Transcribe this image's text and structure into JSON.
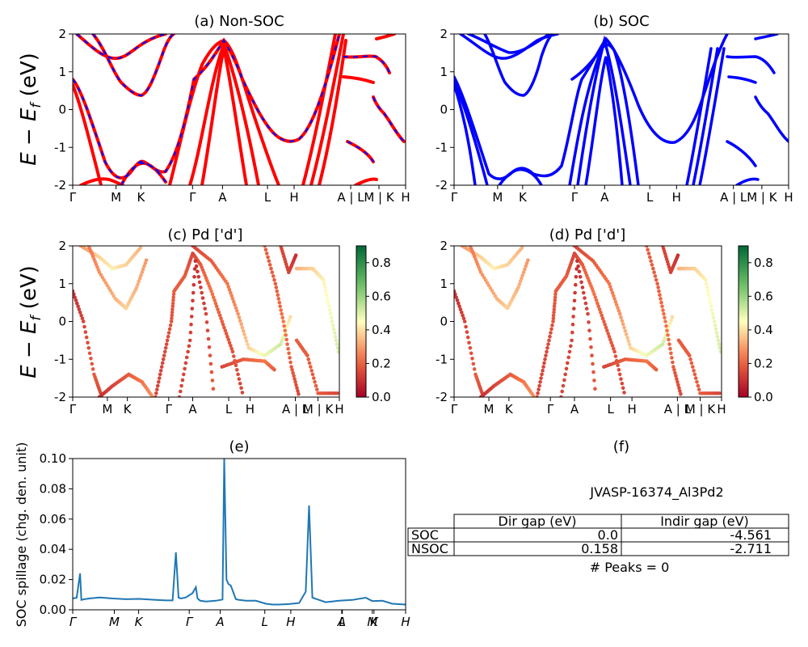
{
  "chart_data": [
    {
      "id": "a",
      "type": "line",
      "title": "(a) Non-SOC",
      "ylabel": "E − E_f (eV)",
      "ylim": [
        -2,
        2
      ],
      "yticks": [
        -2,
        -1,
        0,
        1,
        2
      ],
      "xticks": [
        "Γ",
        "M",
        "K",
        "Γ",
        "A",
        "L",
        "H",
        "A | L",
        "M | K",
        "H"
      ],
      "series": [
        {
          "color": "#ff0000",
          "style": "solid"
        },
        {
          "color": "#0000ff",
          "style": "dashed"
        }
      ],
      "grid": false
    },
    {
      "id": "b",
      "type": "line",
      "title": "(b) SOC",
      "ylim": [
        -2,
        2
      ],
      "yticks": [
        -2,
        -1,
        0,
        1,
        2
      ],
      "xticks": [
        "Γ",
        "M",
        "K",
        "Γ",
        "A",
        "L",
        "H",
        "A | L",
        "M | K",
        "H"
      ],
      "series": [
        {
          "color": "#0000ff",
          "style": "solid"
        }
      ],
      "grid": false
    },
    {
      "id": "c",
      "type": "scatter",
      "title": "(c)  Pd ['d']",
      "ylabel": "E − E_f (eV)",
      "ylim": [
        -2,
        2
      ],
      "yticks": [
        -2,
        -1,
        0,
        1,
        2
      ],
      "xticks": [
        "Γ",
        "M",
        "K",
        "Γ",
        "A",
        "L",
        "H",
        "A | L",
        "M | K",
        "H"
      ],
      "colorbar": {
        "colormap": "RdYlGn",
        "range": [
          0.0,
          0.9
        ],
        "ticks": [
          "0.0",
          "0.2",
          "0.4",
          "0.6",
          "0.8"
        ]
      },
      "grid": false
    },
    {
      "id": "d",
      "type": "scatter",
      "title": "(d) Pd ['d']",
      "ylim": [
        -2,
        2
      ],
      "yticks": [
        -2,
        -1,
        0,
        1,
        2
      ],
      "xticks": [
        "Γ",
        "M",
        "K",
        "Γ",
        "A",
        "L",
        "H",
        "A | L",
        "M | K",
        "H"
      ],
      "colorbar": {
        "colormap": "RdYlGn",
        "range": [
          0.0,
          0.9
        ],
        "ticks": [
          "0.0",
          "0.2",
          "0.4",
          "0.6",
          "0.8"
        ]
      },
      "grid": false
    },
    {
      "id": "e",
      "type": "line",
      "title": "(e)",
      "ylabel": "SOC spillage (chg. den. unit)",
      "ylim": [
        0,
        0.1
      ],
      "yticks": [
        "0.00",
        "0.02",
        "0.04",
        "0.06",
        "0.08",
        "0.10"
      ],
      "xticks": [
        "Γ",
        "M",
        "K",
        "Γ",
        "A",
        "L",
        "H",
        "A",
        "L",
        "M",
        "K",
        "H"
      ],
      "series": [
        {
          "color": "#1f77b4"
        }
      ],
      "x": [
        0.0,
        0.012,
        0.022,
        0.026,
        0.035,
        0.05,
        0.08,
        0.12,
        0.16,
        0.2,
        0.25,
        0.28,
        0.3,
        0.31,
        0.318,
        0.325,
        0.34,
        0.36,
        0.37,
        0.375,
        0.383,
        0.4,
        0.43,
        0.45,
        0.455,
        0.462,
        0.468,
        0.475,
        0.49,
        0.5,
        0.52,
        0.55,
        0.58,
        0.6,
        0.62,
        0.65,
        0.68,
        0.7,
        0.71,
        0.72,
        0.74,
        0.76,
        0.8,
        0.84,
        0.88,
        0.9,
        0.93,
        0.96,
        1.0
      ],
      "y": [
        0.0075,
        0.008,
        0.024,
        0.0065,
        0.007,
        0.0075,
        0.0082,
        0.0075,
        0.007,
        0.0072,
        0.0065,
        0.0062,
        0.0062,
        0.038,
        0.008,
        0.0075,
        0.0082,
        0.011,
        0.015,
        0.0075,
        0.006,
        0.0055,
        0.006,
        0.0068,
        0.1,
        0.02,
        0.017,
        0.016,
        0.007,
        0.0065,
        0.006,
        0.006,
        0.004,
        0.0035,
        0.0035,
        0.0038,
        0.0045,
        0.012,
        0.069,
        0.008,
        0.0065,
        0.005,
        0.006,
        0.0065,
        0.008,
        0.0058,
        0.006,
        0.004,
        0.0035
      ]
    },
    {
      "id": "f",
      "type": "table",
      "title": "(f)",
      "subtitle": "JVASP-16374_Al3Pd2",
      "columns": [
        "Dir gap (eV)",
        "Indir gap (eV)"
      ],
      "rows": [
        {
          "label": "SOC",
          "values": [
            "0.0",
            "-4.561"
          ]
        },
        {
          "label": "NSOC",
          "values": [
            "0.158",
            "-2.711"
          ]
        }
      ],
      "note": "# Peaks = 0"
    }
  ]
}
